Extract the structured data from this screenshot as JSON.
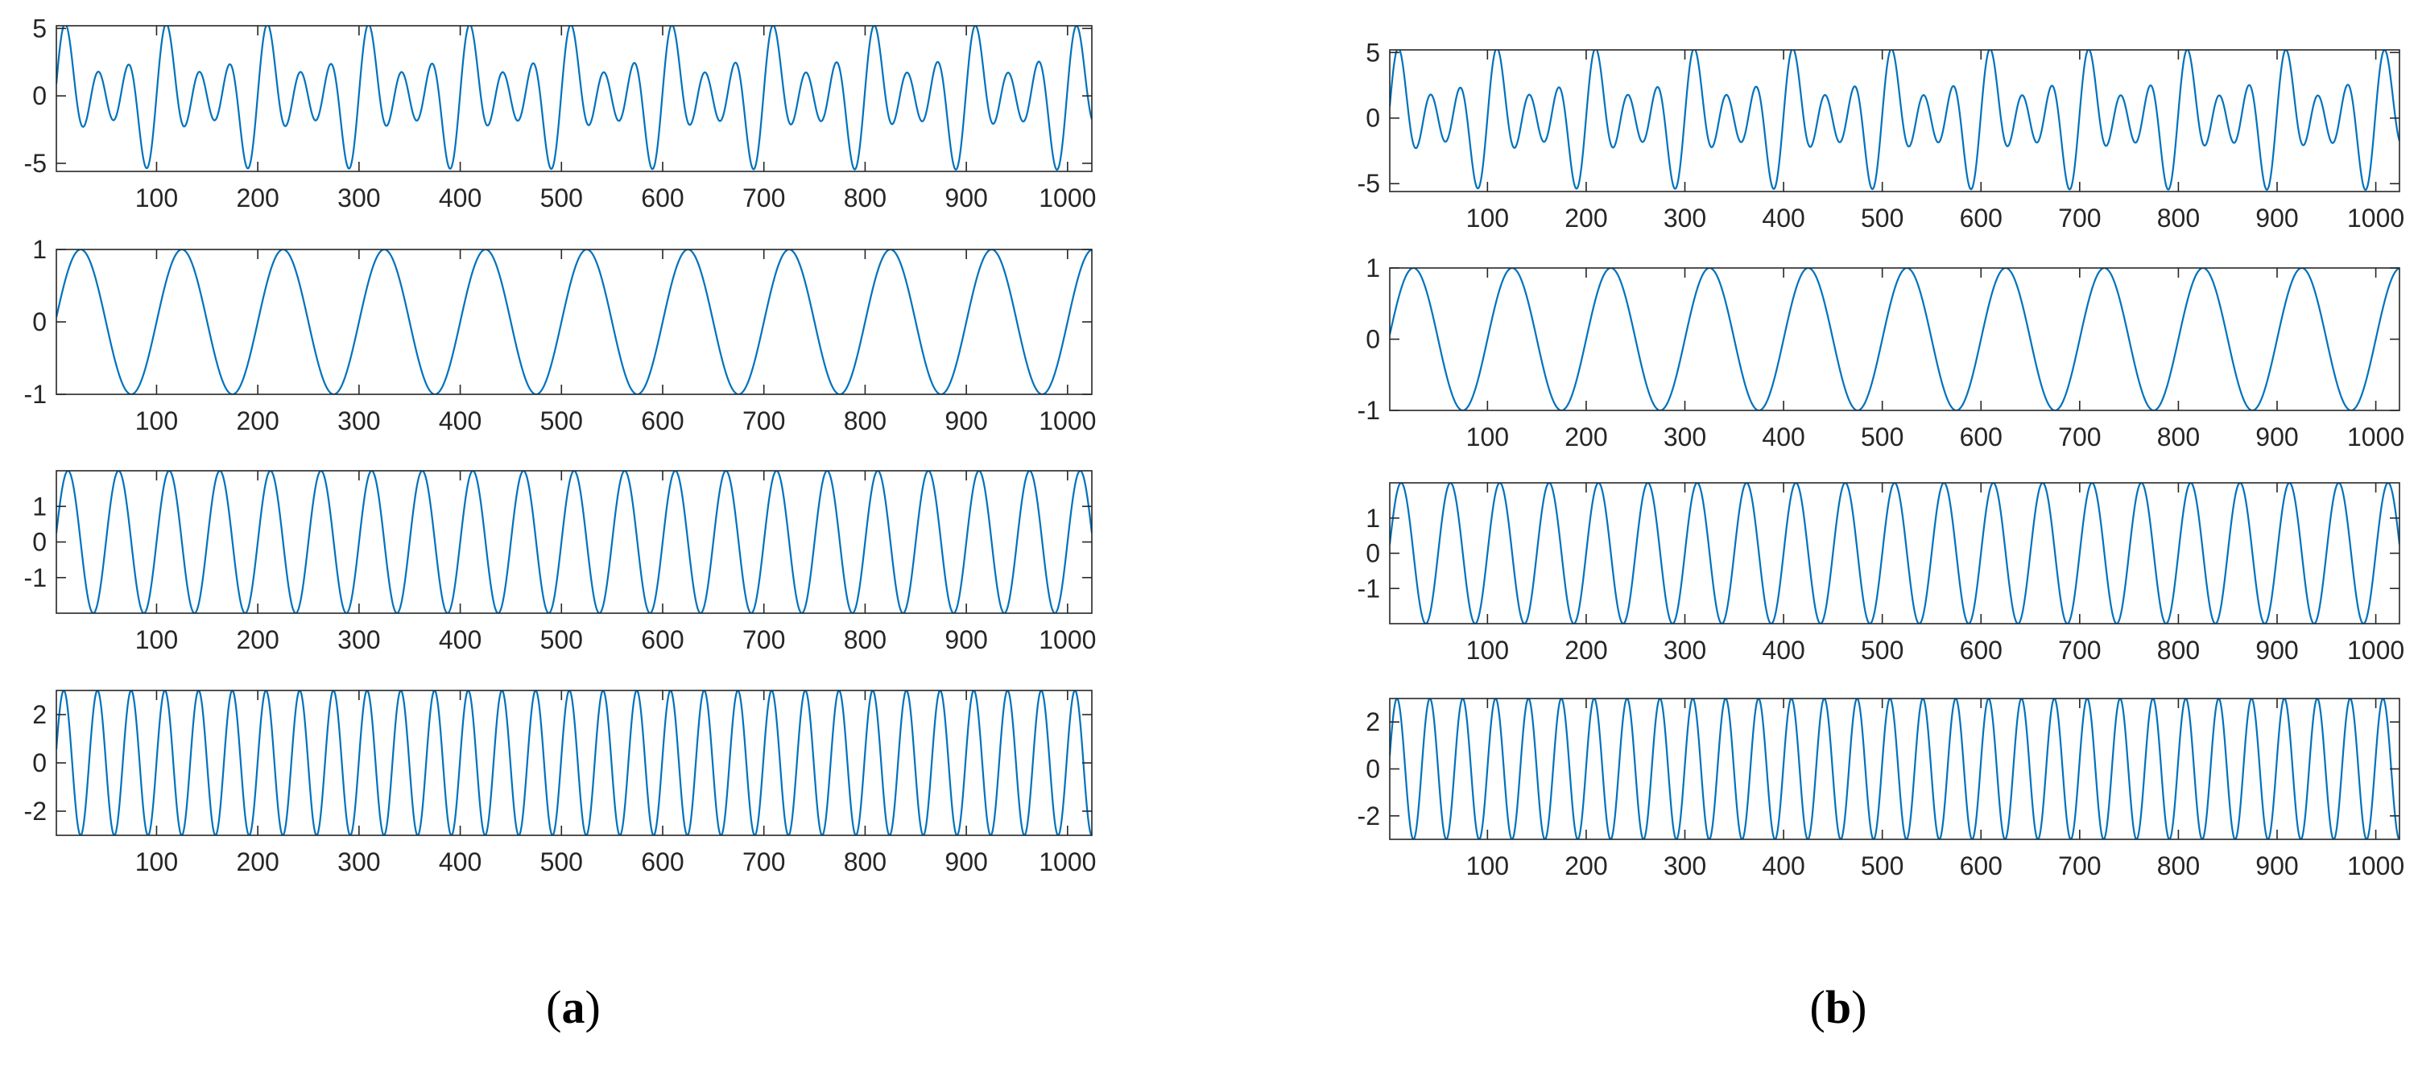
{
  "chart_data": [
    {
      "type": "line",
      "panel": "a",
      "caption_letter": "a",
      "subplots": [
        {
          "title": "",
          "xlabel": "",
          "ylabel": "",
          "xlim": [
            1,
            1024
          ],
          "ylim": [
            -5.6,
            5.2
          ],
          "xticks": [
            100,
            200,
            300,
            400,
            500,
            600,
            700,
            800,
            900,
            1000
          ],
          "yticks": [
            -5,
            0,
            5
          ],
          "ytick_labels": [
            "-5",
            "0",
            "5"
          ],
          "series": [
            {
              "components": [
                {
                  "amplitude": 1,
                  "period": 100
                },
                {
                  "amplitude": 2,
                  "period": 50
                },
                {
                  "amplitude": 3,
                  "period": 33.3
                }
              ]
            }
          ]
        },
        {
          "title": "",
          "xlabel": "",
          "ylabel": "",
          "xlim": [
            1,
            1024
          ],
          "ylim": [
            -1,
            1
          ],
          "xticks": [
            100,
            200,
            300,
            400,
            500,
            600,
            700,
            800,
            900,
            1000
          ],
          "yticks": [
            -1,
            0,
            1
          ],
          "ytick_labels": [
            "-1",
            "0",
            "1"
          ],
          "series": [
            {
              "components": [
                {
                  "amplitude": 1,
                  "period": 100
                }
              ]
            }
          ]
        },
        {
          "title": "",
          "xlabel": "",
          "ylabel": "",
          "xlim": [
            1,
            1024
          ],
          "ylim": [
            -2,
            2
          ],
          "xticks": [
            100,
            200,
            300,
            400,
            500,
            600,
            700,
            800,
            900,
            1000
          ],
          "yticks": [
            -1,
            0,
            1
          ],
          "ytick_labels": [
            "-1",
            "0",
            "1"
          ],
          "series": [
            {
              "components": [
                {
                  "amplitude": 2,
                  "period": 50
                }
              ]
            }
          ]
        },
        {
          "title": "",
          "xlabel": "",
          "ylabel": "",
          "xlim": [
            1,
            1024
          ],
          "ylim": [
            -3,
            3
          ],
          "xticks": [
            100,
            200,
            300,
            400,
            500,
            600,
            700,
            800,
            900,
            1000
          ],
          "yticks": [
            -2,
            0,
            2
          ],
          "ytick_labels": [
            "-2",
            "0",
            "2"
          ],
          "series": [
            {
              "components": [
                {
                  "amplitude": 3,
                  "period": 33.3
                }
              ]
            }
          ]
        }
      ]
    },
    {
      "type": "line",
      "panel": "b",
      "caption_letter": "b",
      "subplots": [
        {
          "title": "",
          "xlabel": "",
          "ylabel": "",
          "xlim": [
            1,
            1024
          ],
          "ylim": [
            -5.6,
            5.2
          ],
          "xticks": [
            100,
            200,
            300,
            400,
            500,
            600,
            700,
            800,
            900,
            1000
          ],
          "yticks": [
            -5,
            0,
            5
          ],
          "ytick_labels": [
            "-5",
            "0",
            "5"
          ],
          "series": [
            {
              "components": [
                {
                  "amplitude": 1,
                  "period": 100
                },
                {
                  "amplitude": 2,
                  "period": 50
                },
                {
                  "amplitude": 3,
                  "period": 33.3
                }
              ]
            }
          ]
        },
        {
          "title": "",
          "xlabel": "",
          "ylabel": "",
          "xlim": [
            1,
            1024
          ],
          "ylim": [
            -1,
            1
          ],
          "xticks": [
            100,
            200,
            300,
            400,
            500,
            600,
            700,
            800,
            900,
            1000
          ],
          "yticks": [
            -1,
            0,
            1
          ],
          "ytick_labels": [
            "-1",
            "0",
            "1"
          ],
          "series": [
            {
              "components": [
                {
                  "amplitude": 1,
                  "period": 100
                }
              ]
            }
          ]
        },
        {
          "title": "",
          "xlabel": "",
          "ylabel": "",
          "xlim": [
            1,
            1024
          ],
          "ylim": [
            -2,
            2
          ],
          "xticks": [
            100,
            200,
            300,
            400,
            500,
            600,
            700,
            800,
            900,
            1000
          ],
          "yticks": [
            -1,
            0,
            1
          ],
          "ytick_labels": [
            "-1",
            "0",
            "1"
          ],
          "series": [
            {
              "components": [
                {
                  "amplitude": 2,
                  "period": 50
                }
              ]
            }
          ]
        },
        {
          "title": "",
          "xlabel": "",
          "ylabel": "",
          "xlim": [
            1,
            1024
          ],
          "ylim": [
            -3,
            3
          ],
          "xticks": [
            100,
            200,
            300,
            400,
            500,
            600,
            700,
            800,
            900,
            1000
          ],
          "yticks": [
            -2,
            0,
            2
          ],
          "ytick_labels": [
            "-2",
            "0",
            "2"
          ],
          "series": [
            {
              "components": [
                {
                  "amplitude": 3,
                  "period": 33.3
                }
              ]
            }
          ]
        }
      ]
    }
  ],
  "style": {
    "line_color": "#0072BD",
    "axis_color": "#262626",
    "background": "#ffffff"
  }
}
